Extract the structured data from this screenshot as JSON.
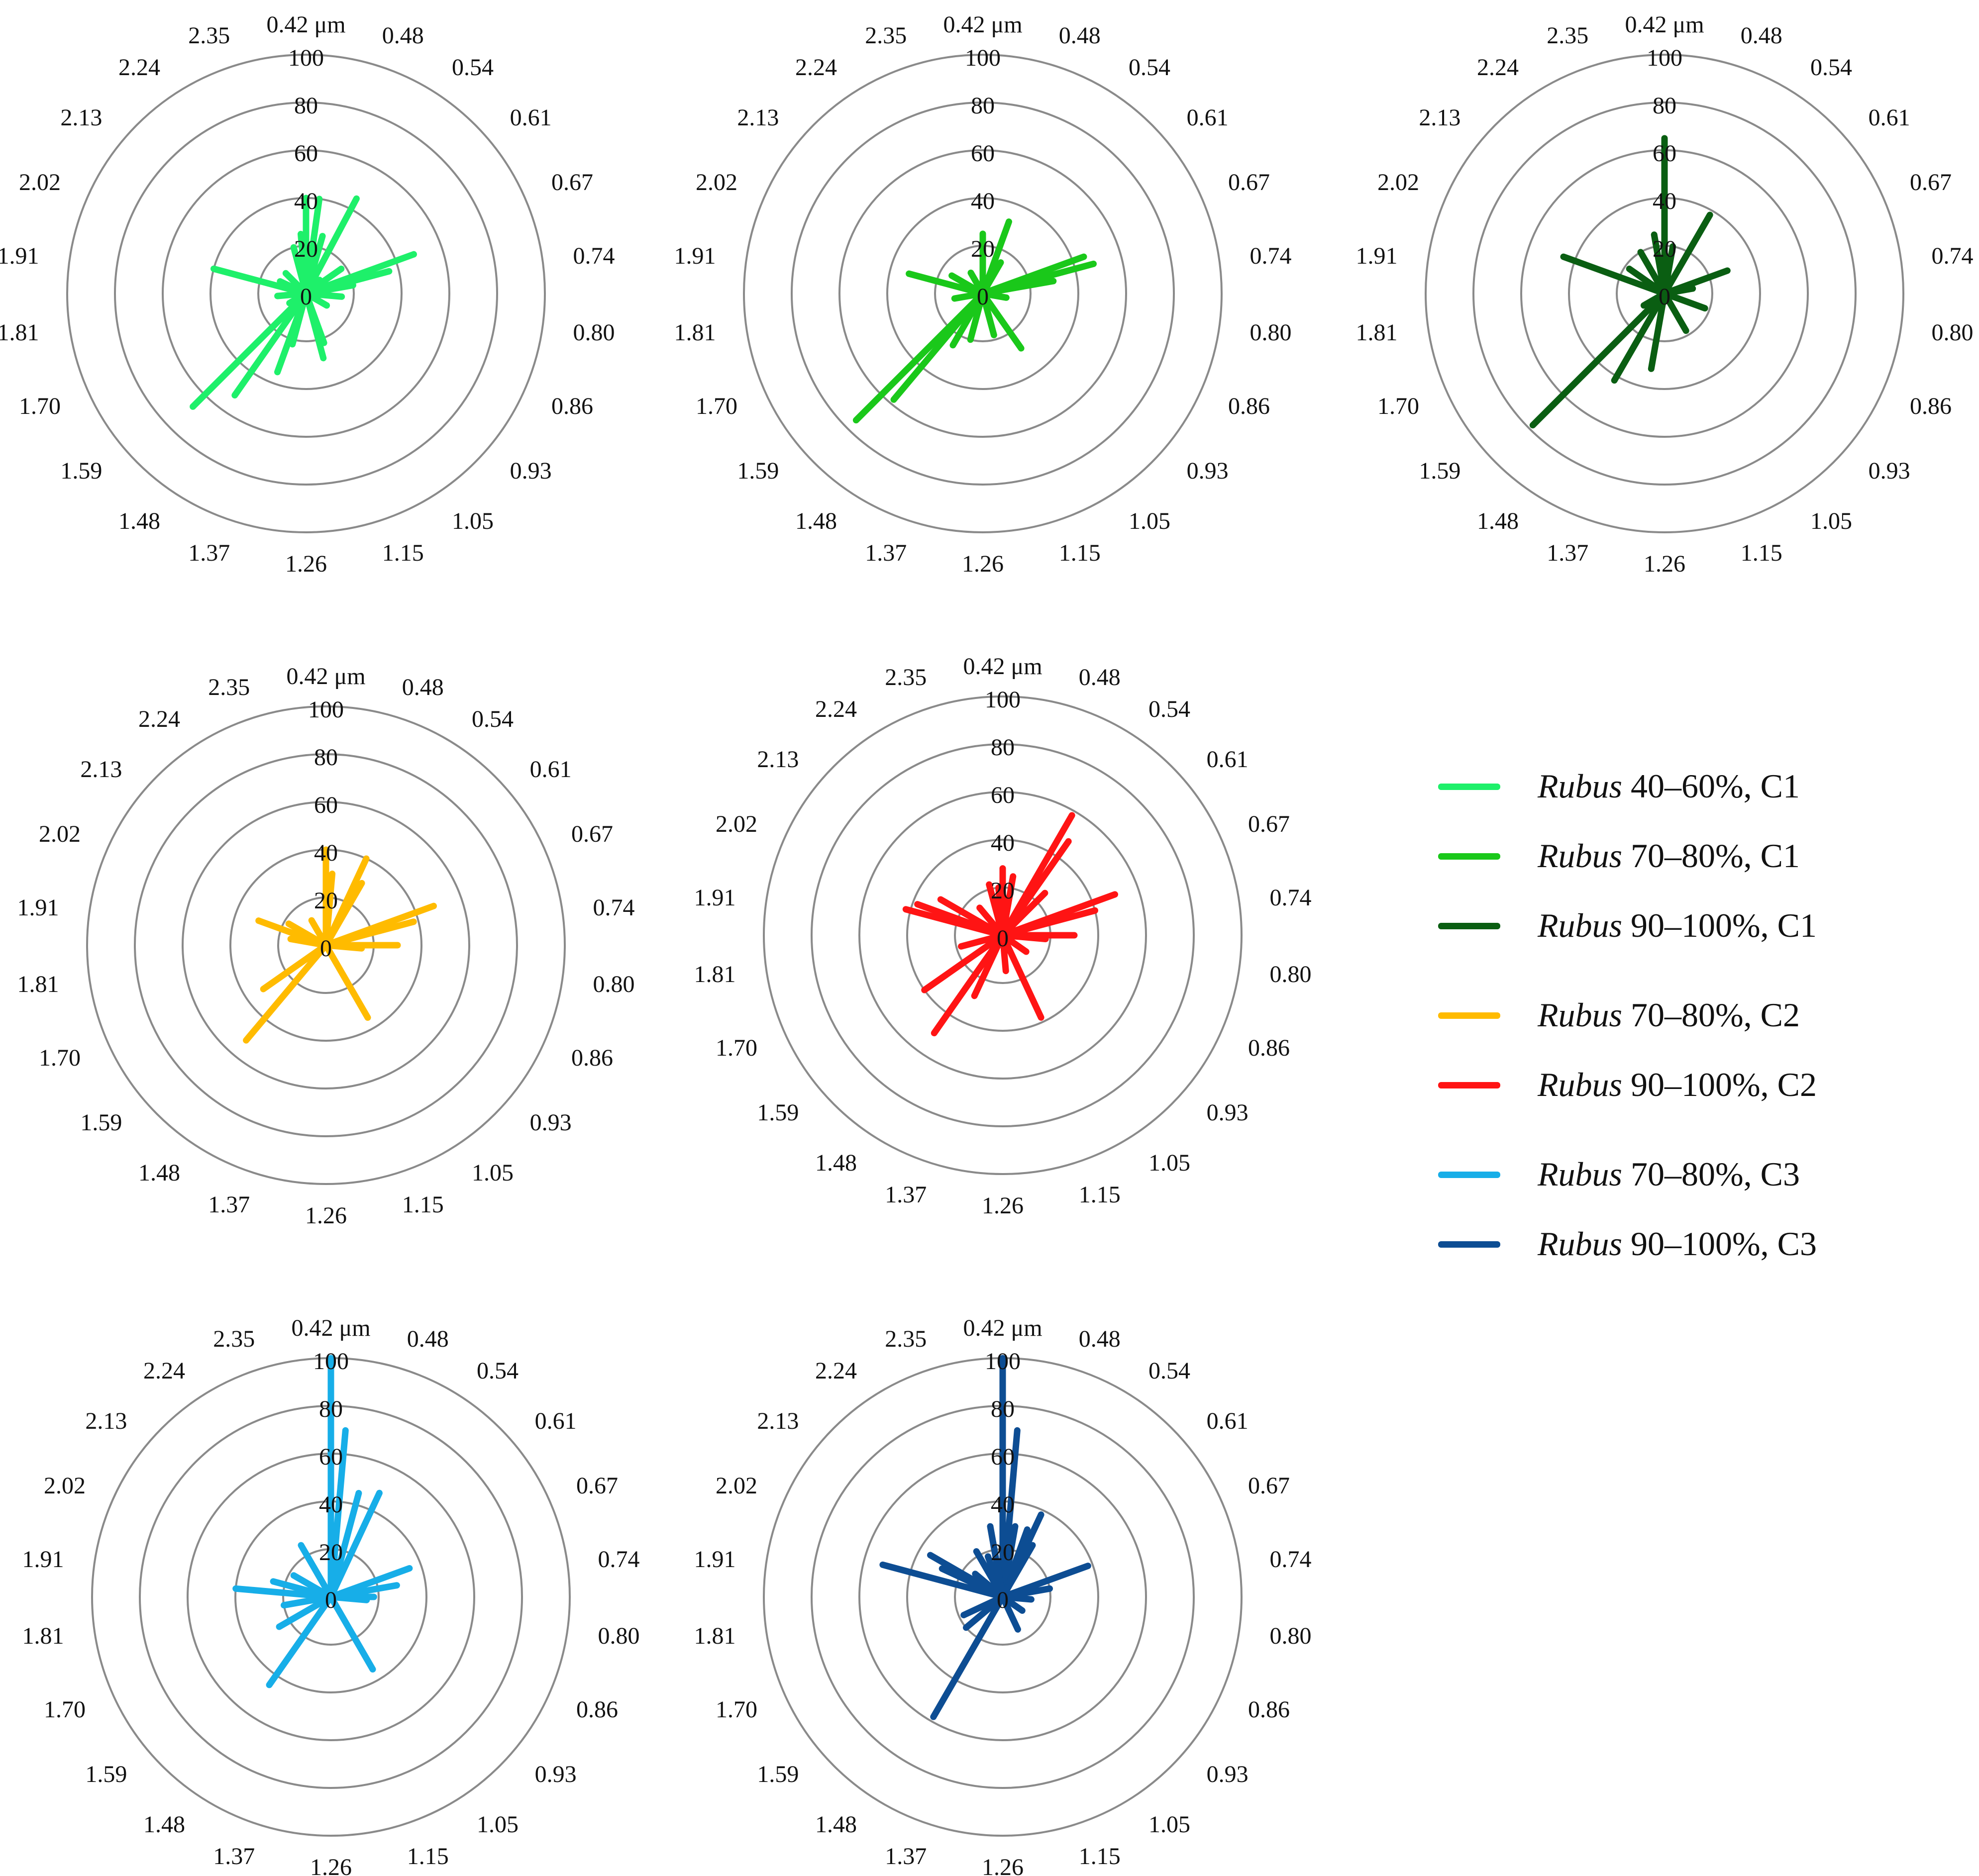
{
  "chart_data": {
    "type": "radar",
    "shared": {
      "wavelength_labels": [
        "0.42 μm",
        "0.48",
        "0.54",
        "0.61",
        "0.67",
        "0.74",
        "0.80",
        "0.86",
        "0.93",
        "1.05",
        "1.15",
        "1.26",
        "1.37",
        "1.48",
        "1.59",
        "1.70",
        "1.81",
        "1.91",
        "2.02",
        "2.13",
        "2.24",
        "2.35"
      ],
      "radial_ticks": [
        "0",
        "20",
        "40",
        "60",
        "80",
        "100"
      ],
      "rmax": 100
    },
    "panels": [
      {
        "name": "Rubus 40–60%, C1",
        "color": "#1ef06a",
        "rays": [
          [
            0,
            40
          ],
          [
            8,
            40
          ],
          [
            16,
            25
          ],
          [
            28,
            45
          ],
          [
            45,
            8
          ],
          [
            55,
            18
          ],
          [
            70,
            48
          ],
          [
            75,
            36
          ],
          [
            80,
            20
          ],
          [
            95,
            15
          ],
          [
            120,
            10
          ],
          [
            160,
            22
          ],
          [
            165,
            28
          ],
          [
            195,
            22
          ],
          [
            200,
            35
          ],
          [
            215,
            52
          ],
          [
            225,
            67
          ],
          [
            240,
            8
          ],
          [
            265,
            12
          ],
          [
            285,
            40
          ],
          [
            295,
            12
          ],
          [
            315,
            12
          ],
          [
            345,
            20
          ],
          [
            355,
            25
          ]
        ]
      },
      {
        "name": "Rubus 70–80%, C1",
        "color": "#1ac81a",
        "rays": [
          [
            0,
            25
          ],
          [
            20,
            32
          ],
          [
            30,
            15
          ],
          [
            70,
            45
          ],
          [
            75,
            48
          ],
          [
            80,
            30
          ],
          [
            100,
            10
          ],
          [
            145,
            28
          ],
          [
            165,
            18
          ],
          [
            195,
            20
          ],
          [
            210,
            25
          ],
          [
            220,
            58
          ],
          [
            225,
            75
          ],
          [
            260,
            12
          ],
          [
            285,
            32
          ],
          [
            300,
            15
          ],
          [
            330,
            10
          ]
        ]
      },
      {
        "name": "Rubus 90–100%, C1",
        "color": "#0a5e12",
        "rays": [
          [
            0,
            65
          ],
          [
            10,
            20
          ],
          [
            30,
            38
          ],
          [
            70,
            28
          ],
          [
            80,
            12
          ],
          [
            110,
            18
          ],
          [
            150,
            18
          ],
          [
            190,
            32
          ],
          [
            210,
            42
          ],
          [
            225,
            78
          ],
          [
            240,
            10
          ],
          [
            290,
            45
          ],
          [
            305,
            18
          ],
          [
            330,
            20
          ],
          [
            350,
            25
          ]
        ]
      },
      {
        "name": "Rubus 70–80%, C2",
        "color": "#ffbb00",
        "rays": [
          [
            0,
            40
          ],
          [
            5,
            30
          ],
          [
            25,
            40
          ],
          [
            30,
            30
          ],
          [
            70,
            48
          ],
          [
            75,
            38
          ],
          [
            90,
            30
          ],
          [
            95,
            15
          ],
          [
            150,
            35
          ],
          [
            220,
            52
          ],
          [
            235,
            32
          ],
          [
            280,
            15
          ],
          [
            290,
            30
          ],
          [
            300,
            18
          ],
          [
            330,
            12
          ]
        ]
      },
      {
        "name": "Rubus 90–100%, C2",
        "color": "#ff1414",
        "rays": [
          [
            0,
            28
          ],
          [
            10,
            25
          ],
          [
            30,
            58
          ],
          [
            35,
            48
          ],
          [
            45,
            25
          ],
          [
            70,
            50
          ],
          [
            75,
            40
          ],
          [
            90,
            30
          ],
          [
            95,
            18
          ],
          [
            125,
            12
          ],
          [
            155,
            38
          ],
          [
            175,
            15
          ],
          [
            205,
            28
          ],
          [
            215,
            50
          ],
          [
            235,
            40
          ],
          [
            255,
            18
          ],
          [
            285,
            42
          ],
          [
            290,
            38
          ],
          [
            300,
            30
          ],
          [
            320,
            15
          ],
          [
            345,
            22
          ],
          [
            355,
            20
          ]
        ]
      },
      {
        "name": "Rubus 70–80%, C3",
        "color": "#17aee8",
        "rays": [
          [
            0,
            100
          ],
          [
            5,
            70
          ],
          [
            15,
            45
          ],
          [
            25,
            48
          ],
          [
            70,
            35
          ],
          [
            80,
            28
          ],
          [
            90,
            18
          ],
          [
            95,
            15
          ],
          [
            150,
            35
          ],
          [
            215,
            45
          ],
          [
            240,
            25
          ],
          [
            260,
            20
          ],
          [
            275,
            40
          ],
          [
            285,
            25
          ],
          [
            300,
            18
          ],
          [
            330,
            25
          ]
        ]
      },
      {
        "name": "Rubus 90–100%, C3",
        "color": "#0d4d93",
        "rays": [
          [
            0,
            100
          ],
          [
            5,
            70
          ],
          [
            10,
            30
          ],
          [
            20,
            30
          ],
          [
            25,
            38
          ],
          [
            30,
            25
          ],
          [
            70,
            38
          ],
          [
            80,
            20
          ],
          [
            95,
            12
          ],
          [
            125,
            10
          ],
          [
            155,
            15
          ],
          [
            210,
            58
          ],
          [
            230,
            20
          ],
          [
            245,
            18
          ],
          [
            285,
            52
          ],
          [
            295,
            28
          ],
          [
            300,
            35
          ],
          [
            310,
            15
          ],
          [
            330,
            22
          ],
          [
            340,
            18
          ],
          [
            350,
            30
          ]
        ]
      }
    ]
  },
  "legend": [
    {
      "italic": "Rubus",
      "rest": " 40–60%, C1",
      "color": "#1ef06a"
    },
    {
      "italic": "Rubus",
      "rest": " 70–80%, C1",
      "color": "#1ac81a"
    },
    {
      "italic": "Rubus",
      "rest": " 90–100%, C1",
      "color": "#0a5e12"
    },
    {
      "italic": "Rubus",
      "rest": " 70–80%, C2",
      "color": "#ffbb00"
    },
    {
      "italic": "Rubus",
      "rest": " 90–100%, C2",
      "color": "#ff1414"
    },
    {
      "italic": "Rubus",
      "rest": " 70–80%, C3",
      "color": "#17aee8"
    },
    {
      "italic": "Rubus",
      "rest": " 90–100%, C3",
      "color": "#0d4d93"
    }
  ]
}
